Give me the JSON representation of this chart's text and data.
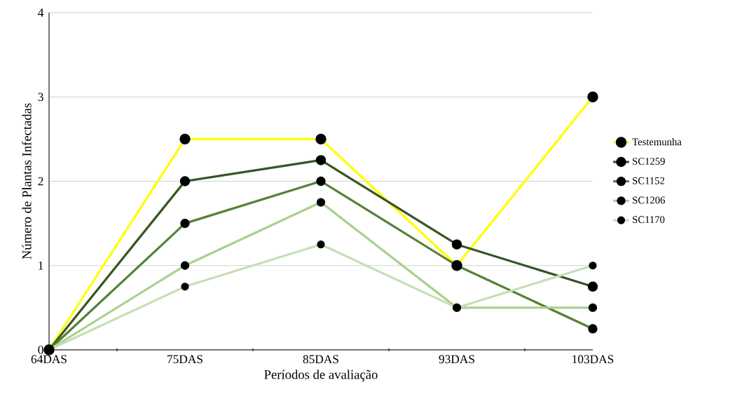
{
  "chart_data": {
    "type": "line",
    "xlabel": "Períodos de avaliação",
    "ylabel": "Número de Plantas Infectadas",
    "categories": [
      "64DAS",
      "75DAS",
      "85DAS",
      "93DAS",
      "103DAS"
    ],
    "series": [
      {
        "name": "Testemunha",
        "color": "#ffff00",
        "values": [
          0,
          2.5,
          2.5,
          1,
          3
        ]
      },
      {
        "name": "SC1259",
        "color": "#375623",
        "values": [
          0,
          2,
          2.25,
          1.25,
          0.75
        ]
      },
      {
        "name": "SC1152",
        "color": "#548235",
        "values": [
          0,
          1.5,
          2,
          1,
          0.25
        ]
      },
      {
        "name": "SC1206",
        "color": "#a9d18e",
        "values": [
          0,
          1,
          1.75,
          0.5,
          0.5
        ]
      },
      {
        "name": "SC1170",
        "color": "#c5e0b4",
        "values": [
          0,
          0.75,
          1.25,
          0.5,
          1
        ]
      }
    ],
    "ylim": [
      0,
      4
    ],
    "yticks": [
      0,
      1,
      2,
      3,
      4
    ],
    "grid": "y",
    "legend": "right",
    "marker": "circle",
    "line_style": "solid"
  }
}
